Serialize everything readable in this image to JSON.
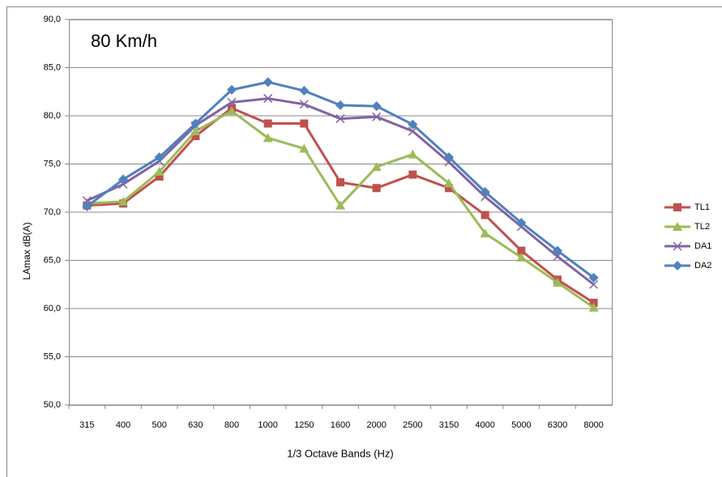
{
  "chart_data": {
    "type": "line",
    "annotation": "80 Km/h",
    "x_label": "1/3 Octave Bands (Hz)",
    "y_label": "LAmax dB(A)",
    "categories": [
      "315",
      "400",
      "500",
      "630",
      "800",
      "1000",
      "1250",
      "1600",
      "2000",
      "2500",
      "3150",
      "4000",
      "5000",
      "6300",
      "8000"
    ],
    "series": [
      {
        "name": "TL1",
        "color": "#c0504d",
        "marker": "square",
        "values": [
          70.7,
          70.9,
          73.7,
          77.9,
          80.8,
          79.2,
          79.2,
          73.1,
          72.5,
          73.9,
          72.5,
          69.7,
          66.0,
          63.0,
          60.6
        ]
      },
      {
        "name": "TL2",
        "color": "#9bbb59",
        "marker": "triangle",
        "values": [
          70.9,
          71.1,
          74.2,
          78.4,
          80.5,
          77.7,
          76.6,
          70.7,
          74.7,
          76.0,
          73.0,
          67.8,
          65.3,
          62.7,
          60.1
        ]
      },
      {
        "name": "DA1",
        "color": "#8064a2",
        "marker": "x",
        "values": [
          71.2,
          72.9,
          75.3,
          79.0,
          81.4,
          81.8,
          81.2,
          79.7,
          79.9,
          78.4,
          75.2,
          71.6,
          68.5,
          65.4,
          62.5
        ]
      },
      {
        "name": "DA2",
        "color": "#4f81bd",
        "marker": "diamond",
        "values": [
          70.6,
          73.4,
          75.7,
          79.2,
          82.7,
          83.5,
          82.6,
          81.1,
          81.0,
          79.1,
          75.7,
          72.1,
          68.9,
          66.0,
          63.2
        ]
      }
    ],
    "ylim": [
      50,
      90
    ],
    "yticks": [
      {
        "value": 50,
        "label": "50,0"
      },
      {
        "value": 55,
        "label": "55,0"
      },
      {
        "value": 60,
        "label": "60,0"
      },
      {
        "value": 65,
        "label": "65,0"
      },
      {
        "value": 70,
        "label": "70,0"
      },
      {
        "value": 75,
        "label": "75,0"
      },
      {
        "value": 80,
        "label": "80,0"
      },
      {
        "value": 85,
        "label": "85,0"
      },
      {
        "value": 90,
        "label": "90,0"
      }
    ],
    "grid": true,
    "legend": "right"
  }
}
